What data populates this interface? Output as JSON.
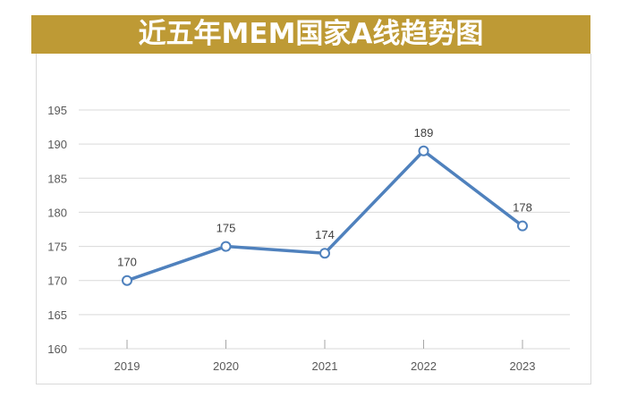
{
  "chart_data": {
    "type": "line",
    "title": "近五年MEM国家A线趋势图",
    "categories": [
      "2019",
      "2020",
      "2021",
      "2022",
      "2023"
    ],
    "series": [
      {
        "name": "MEM国家A线",
        "values": [
          170,
          175,
          174,
          189,
          178
        ]
      }
    ],
    "ylim": [
      160,
      195
    ],
    "yticks": [
      160,
      165,
      170,
      175,
      180,
      185,
      190,
      195
    ],
    "grid": true,
    "xlabel": "",
    "ylabel": "",
    "colors": {
      "line": "#4F81BD",
      "title_bg": "#BE9A35",
      "grid": "#d9d9d9"
    }
  }
}
